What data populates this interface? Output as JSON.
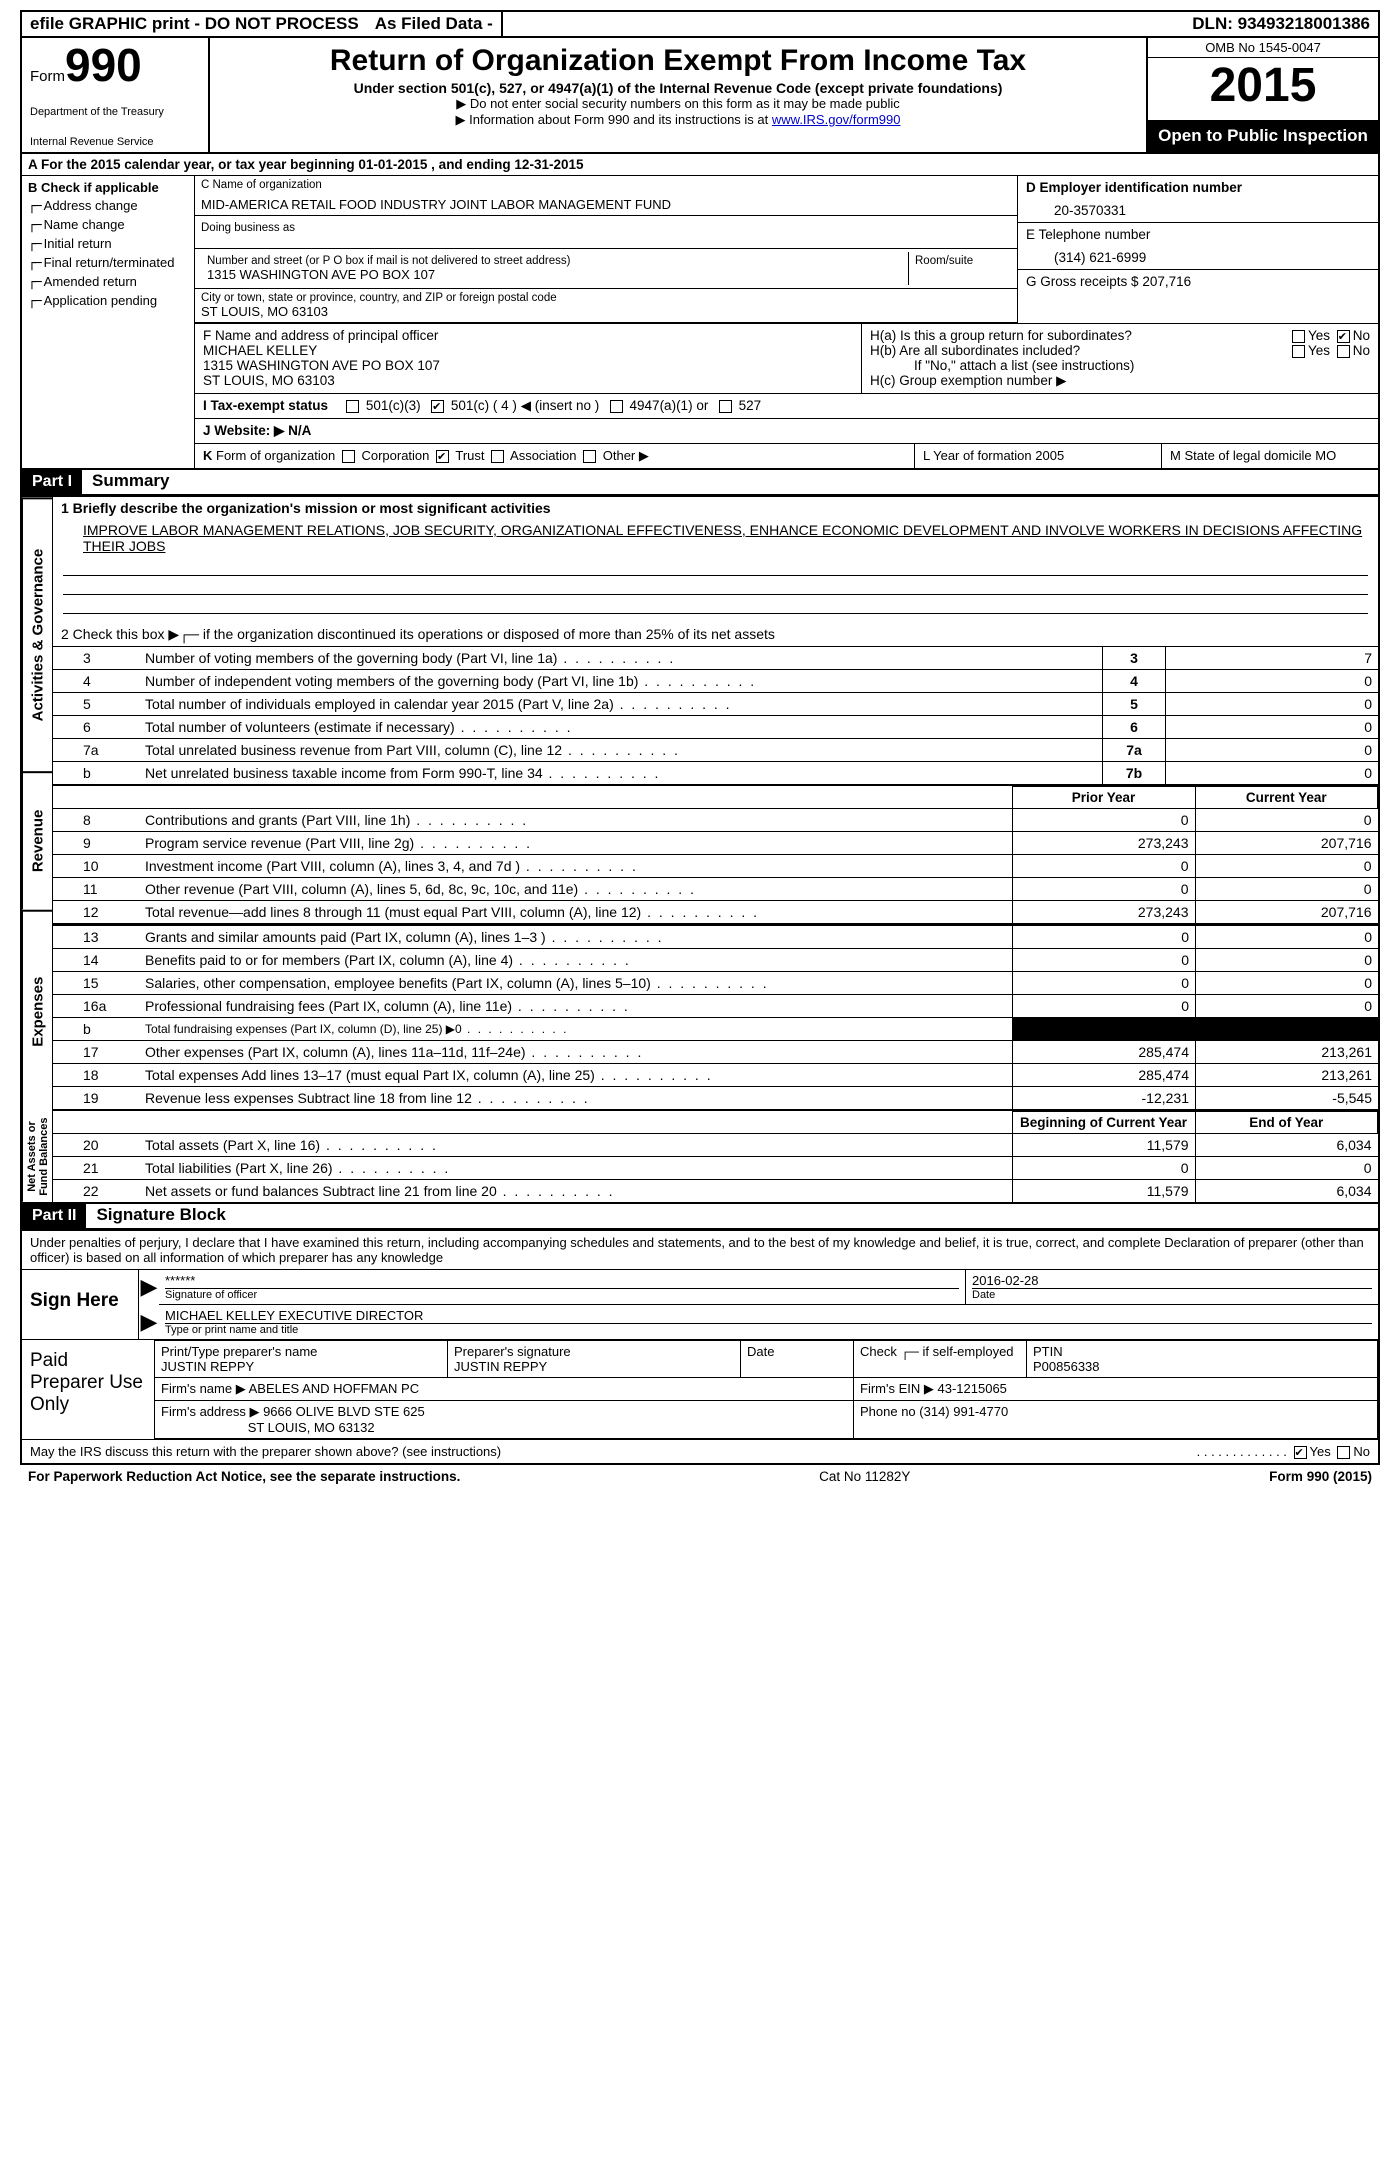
{
  "topbar": {
    "efile": "efile GRAPHIC print - DO NOT PROCESS",
    "filed": "As Filed Data -",
    "dln_label": "DLN:",
    "dln": "93493218001386"
  },
  "header": {
    "form_word": "Form",
    "form_num": "990",
    "dept": "Department of the Treasury",
    "irs": "Internal Revenue Service",
    "title": "Return of Organization Exempt From Income Tax",
    "subtitle": "Under section 501(c), 527, or 4947(a)(1) of the Internal Revenue Code (except private foundations)",
    "note1": "▶ Do not enter social security numbers on this form as it may be made public",
    "note2_pre": "▶ Information about Form 990 and its instructions is at ",
    "note2_link": "www.IRS.gov/form990",
    "omb": "OMB No 1545-0047",
    "year": "2015",
    "public": "Open to Public Inspection"
  },
  "rowA": "A   For the 2015 calendar year, or tax year beginning 01-01-2015     , and ending 12-31-2015",
  "colB": {
    "label": "B  Check if applicable",
    "items": [
      "Address change",
      "Name change",
      "Initial return",
      "Final return/terminated",
      "Amended return",
      "Application pending"
    ]
  },
  "colC": {
    "name_lbl": "C Name of organization",
    "name": "MID-AMERICA RETAIL FOOD INDUSTRY JOINT LABOR MANAGEMENT FUND",
    "dba_lbl": "Doing business as",
    "street_lbl": "Number and street (or P O  box if mail is not delivered to street address)",
    "street": "1315 WASHINGTON AVE PO BOX 107",
    "room_lbl": "Room/suite",
    "city_lbl": "City or town, state or province, country, and ZIP or foreign postal code",
    "city": "ST LOUIS, MO  63103"
  },
  "colD": {
    "lbl": "D Employer identification number",
    "val": "20-3570331"
  },
  "colE": {
    "lbl": "E Telephone number",
    "val": "(314) 621-6999"
  },
  "colG": {
    "lbl": "G Gross receipts $",
    "val": "207,716"
  },
  "colF": {
    "lbl": "F   Name and address of principal officer",
    "name": "MICHAEL KELLEY",
    "addr1": "1315 WASHINGTON AVE PO BOX 107",
    "addr2": "ST LOUIS, MO  63103"
  },
  "colH": {
    "a": "H(a)  Is this a group return for subordinates?",
    "a_yes": "Yes",
    "a_no": "No",
    "b": "H(b)  Are all subordinates included?",
    "b_note": "If \"No,\" attach a list  (see instructions)",
    "c": "H(c)  Group exemption number ▶"
  },
  "rowI": "I    Tax-exempt status",
  "rowI_opts": "501(c)(3)        501(c) ( 4 ) ◀ (insert no )        4947(a)(1) or        527",
  "rowJ": "J   Website: ▶  N/A",
  "rowK": "K Form of organization      Corporation     Trust     Association     Other ▶",
  "rowL": "L Year of formation  2005",
  "rowM": "M State of legal domicile MO",
  "partI": {
    "hdr": "Part I",
    "title": "Summary"
  },
  "summary": {
    "gov_label": "Activities & Governance",
    "rev_label": "Revenue",
    "exp_label": "Expenses",
    "net_label": "Net Assets or Fund Balances",
    "line1_lbl": "1 Briefly describe the organization's mission or most significant activities",
    "line1_txt": "IMPROVE LABOR MANAGEMENT RELATIONS, JOB SECURITY, ORGANIZATIONAL EFFECTIVENESS, ENHANCE ECONOMIC DEVELOPMENT AND INVOLVE WORKERS IN DECISIONS AFFECTING THEIR JOBS",
    "line2": "2  Check this box ▶┌─ if the organization discontinued its operations or disposed of more than 25% of its net assets",
    "lines_gov": [
      {
        "n": "3",
        "t": "Number of voting members of the governing body (Part VI, line 1a)",
        "box": "3",
        "v": "7"
      },
      {
        "n": "4",
        "t": "Number of independent voting members of the governing body (Part VI, line 1b)",
        "box": "4",
        "v": "0"
      },
      {
        "n": "5",
        "t": "Total number of individuals employed in calendar year 2015 (Part V, line 2a)",
        "box": "5",
        "v": "0"
      },
      {
        "n": "6",
        "t": "Total number of volunteers (estimate if necessary)",
        "box": "6",
        "v": "0"
      },
      {
        "n": "7a",
        "t": "Total unrelated business revenue from Part VIII, column (C), line 12",
        "box": "7a",
        "v": "0"
      },
      {
        "n": "b",
        "t": "Net unrelated business taxable income from Form 990-T, line 34",
        "box": "7b",
        "v": "0"
      }
    ],
    "hdr_prior": "Prior Year",
    "hdr_curr": "Current Year",
    "lines_rev": [
      {
        "n": "8",
        "t": "Contributions and grants (Part VIII, line 1h)",
        "p": "0",
        "c": "0"
      },
      {
        "n": "9",
        "t": "Program service revenue (Part VIII, line 2g)",
        "p": "273,243",
        "c": "207,716"
      },
      {
        "n": "10",
        "t": "Investment income (Part VIII, column (A), lines 3, 4, and 7d )",
        "p": "0",
        "c": "0"
      },
      {
        "n": "11",
        "t": "Other revenue (Part VIII, column (A), lines 5, 6d, 8c, 9c, 10c, and 11e)",
        "p": "0",
        "c": "0"
      },
      {
        "n": "12",
        "t": "Total revenue—add lines 8 through 11 (must equal Part VIII, column (A), line 12)",
        "p": "273,243",
        "c": "207,716"
      }
    ],
    "lines_exp": [
      {
        "n": "13",
        "t": "Grants and similar amounts paid (Part IX, column (A), lines 1–3 )",
        "p": "0",
        "c": "0"
      },
      {
        "n": "14",
        "t": "Benefits paid to or for members (Part IX, column (A), line 4)",
        "p": "0",
        "c": "0"
      },
      {
        "n": "15",
        "t": "Salaries, other compensation, employee benefits (Part IX, column (A), lines 5–10)",
        "p": "0",
        "c": "0"
      },
      {
        "n": "16a",
        "t": "Professional fundraising fees (Part IX, column (A), line 11e)",
        "p": "0",
        "c": "0"
      },
      {
        "n": "b",
        "t": "Total fundraising expenses (Part IX, column (D), line 25) ▶0",
        "p": "BLACK",
        "c": "BLACK",
        "small": true
      },
      {
        "n": "17",
        "t": "Other expenses (Part IX, column (A), lines 11a–11d, 11f–24e)",
        "p": "285,474",
        "c": "213,261"
      },
      {
        "n": "18",
        "t": "Total expenses  Add lines 13–17 (must equal Part IX, column (A), line 25)",
        "p": "285,474",
        "c": "213,261"
      },
      {
        "n": "19",
        "t": "Revenue less expenses  Subtract line 18 from line 12",
        "p": "-12,231",
        "c": "-5,545"
      }
    ],
    "hdr_beg": "Beginning of Current Year",
    "hdr_end": "End of Year",
    "lines_net": [
      {
        "n": "20",
        "t": "Total assets (Part X, line 16)",
        "p": "11,579",
        "c": "6,034"
      },
      {
        "n": "21",
        "t": "Total liabilities (Part X, line 26)",
        "p": "0",
        "c": "0"
      },
      {
        "n": "22",
        "t": "Net assets or fund balances  Subtract line 21 from line 20",
        "p": "11,579",
        "c": "6,034"
      }
    ]
  },
  "partII": {
    "hdr": "Part II",
    "title": "Signature Block"
  },
  "penalty": "Under penalties of perjury, I declare that I have examined this return, including accompanying schedules and statements, and to the best of my knowledge and belief, it is true, correct, and complete  Declaration of preparer (other than officer) is based on all information of which preparer has any knowledge",
  "sign": {
    "lbl": "Sign Here",
    "stars": "******",
    "sig_lbl": "Signature of officer",
    "date": "2016-02-28",
    "date_lbl": "Date",
    "name": "MICHAEL KELLEY EXECUTIVE DIRECTOR",
    "name_lbl": "Type or print name and title"
  },
  "prep": {
    "lbl": "Paid Preparer Use Only",
    "h1": "Print/Type preparer's name",
    "v1": "JUSTIN REPPY",
    "h2": "Preparer's signature",
    "v2": "JUSTIN REPPY",
    "h3": "Date",
    "h4": "Check ┌─ if self-employed",
    "h5": "PTIN",
    "v5": "P00856338",
    "firm_lbl": "Firm's name    ▶",
    "firm": "ABELES AND HOFFMAN PC",
    "ein_lbl": "Firm's EIN ▶",
    "ein": "43-1215065",
    "addr_lbl": "Firm's address ▶",
    "addr1": "9666 OLIVE BLVD STE 625",
    "addr2": "ST LOUIS, MO  63132",
    "phone_lbl": "Phone no ",
    "phone": "(314) 991-4770"
  },
  "discuss": "May the IRS discuss this return with the preparer shown above? (see instructions)",
  "footer": {
    "left": "For Paperwork Reduction Act Notice, see the separate instructions.",
    "mid": "Cat No 11282Y",
    "right": "Form 990 (2015)"
  }
}
